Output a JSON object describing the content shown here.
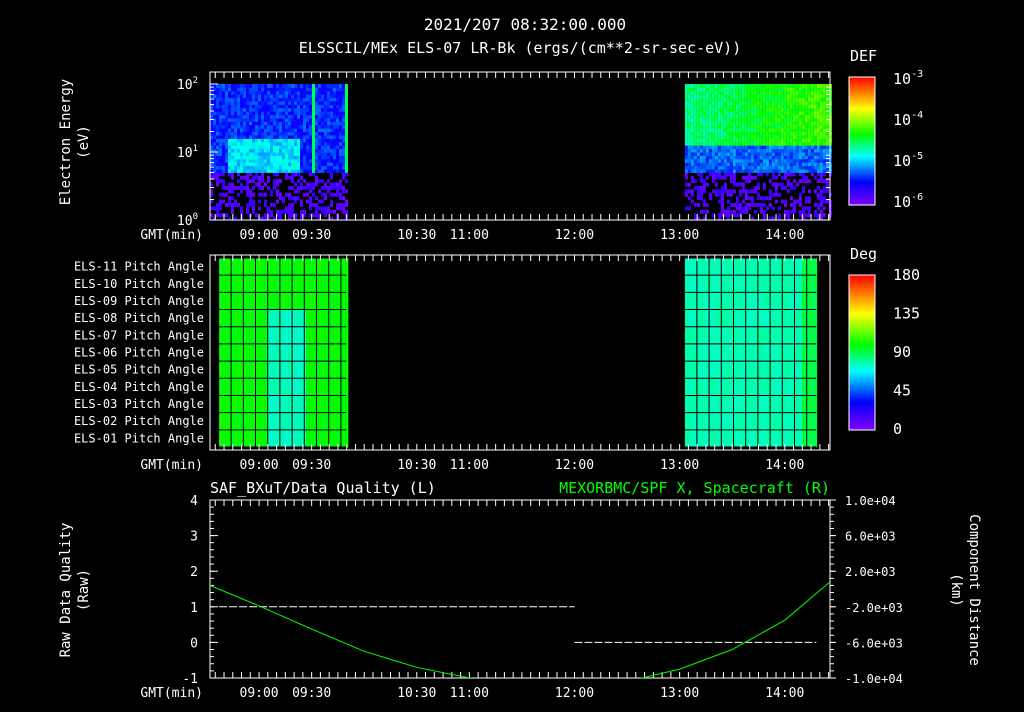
{
  "header": {
    "datetime": "2021/207 08:32:00.000",
    "title": "ELSSCIL/MEx ELS-07 LR-Bk  (ergs/(cm**2-sr-sec-eV))"
  },
  "time_axis": {
    "label": "GMT(min)",
    "start_hours": 8.5333,
    "end_hours": 14.43,
    "ticks": [
      {
        "label": "09:00",
        "hours": 9.0
      },
      {
        "label": "09:30",
        "hours": 9.5
      },
      {
        "label": "10:30",
        "hours": 10.5
      },
      {
        "label": "11:00",
        "hours": 11.0
      },
      {
        "label": "12:00",
        "hours": 12.0
      },
      {
        "label": "13:00",
        "hours": 13.0
      },
      {
        "label": "14:00",
        "hours": 14.0
      }
    ]
  },
  "chart_data": [
    {
      "type": "heatmap",
      "name": "energy-spectrogram",
      "ylabel": "Electron Energy",
      "yunit": "(eV)",
      "yscale": "log",
      "ylim": [
        1,
        150
      ],
      "yticks": [
        {
          "base": "10",
          "exp": "0",
          "value": 1
        },
        {
          "base": "10",
          "exp": "1",
          "value": 10
        },
        {
          "base": "10",
          "exp": "2",
          "value": 100
        }
      ],
      "data_intervals_hours": [
        [
          8.5333,
          9.83
        ],
        [
          13.05,
          14.43
        ]
      ],
      "colorbar": {
        "title": "DEF",
        "ticks": [
          {
            "base": "10",
            "exp": "-3"
          },
          {
            "base": "10",
            "exp": "-4"
          },
          {
            "base": "10",
            "exp": "-5"
          },
          {
            "base": "10",
            "exp": "-6"
          }
        ],
        "range": [
          1e-06,
          0.001
        ]
      }
    },
    {
      "type": "heatmap",
      "name": "pitch-angle",
      "rows": [
        "ELS-11 Pitch Angle",
        "ELS-10 Pitch Angle",
        "ELS-09 Pitch Angle",
        "ELS-08 Pitch Angle",
        "ELS-07 Pitch Angle",
        "ELS-06 Pitch Angle",
        "ELS-05 Pitch Angle",
        "ELS-04 Pitch Angle",
        "ELS-03 Pitch Angle",
        "ELS-02 Pitch Angle",
        "ELS-01 Pitch Angle"
      ],
      "data_intervals_hours": [
        [
          8.62,
          9.83
        ],
        [
          13.05,
          14.3
        ]
      ],
      "colorbar": {
        "title": "Deg",
        "ticks": [
          "180",
          "135",
          "90",
          "45",
          "0"
        ],
        "range": [
          0,
          180
        ]
      }
    },
    {
      "type": "line",
      "name": "data-quality-and-position",
      "title_left": "SAF_BXuT/Data Quality (L)",
      "title_right": "MEXORBMC/SPF X, Spacecraft (R)",
      "ylabel_left": "Raw Data Quality",
      "yunit_left": "(Raw)",
      "ylabel_right": "Component Distance",
      "yunit_right": "(km)",
      "ylim_left": [
        -1,
        4
      ],
      "yticks_left": [
        "4",
        "3",
        "2",
        "1",
        "0",
        "-1"
      ],
      "ylim_right": [
        -10000,
        10000
      ],
      "yticks_right": [
        "1.0e+04",
        "6.0e+03",
        "2.0e+03",
        "-2.0e+03",
        "-6.0e+03",
        "-1.0e+04"
      ],
      "series": [
        {
          "name": "Data Quality",
          "axis": "left",
          "color": "#ffffff",
          "segments": [
            {
              "x": [
                8.62,
                12.0
              ],
              "y": 1
            },
            {
              "x": [
                12.0,
                14.3
              ],
              "y": 0
            }
          ]
        },
        {
          "name": "SPF X",
          "axis": "right",
          "color": "#00ff00",
          "x": [
            8.5333,
            9.0,
            9.5,
            10.0,
            10.5,
            11.0,
            11.5,
            12.0,
            12.5,
            13.0,
            13.5,
            14.0,
            14.43
          ],
          "y": [
            400,
            -1900,
            -4500,
            -7000,
            -8800,
            -10000,
            -10800,
            -11000,
            -10400,
            -9000,
            -6800,
            -3500,
            800
          ]
        }
      ]
    }
  ],
  "colors": {
    "green": "#00ff00",
    "white": "#ffffff",
    "background": "#000000"
  }
}
